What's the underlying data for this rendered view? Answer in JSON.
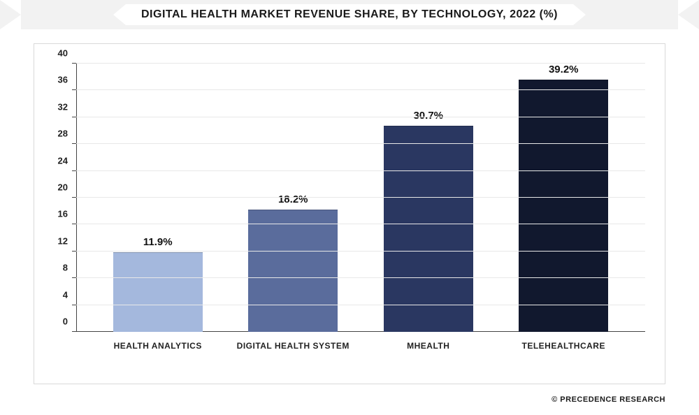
{
  "chart": {
    "type": "bar",
    "title": "DIGITAL HEALTH MARKET REVENUE SHARE, BY TECHNOLOGY, 2022 (%)",
    "title_fontsize": 16,
    "title_color": "#1a1a1a",
    "categories": [
      "HEALTH ANALYTICS",
      "DIGITAL HEALTH SYSTEM",
      "MHEALTH",
      "TELEHEALTHCARE"
    ],
    "values": [
      11.9,
      18.2,
      30.7,
      39.2
    ],
    "value_labels": [
      "11.9%",
      "18.2%",
      "30.7%",
      "39.2%"
    ],
    "bar_colors": [
      "#a4b8dd",
      "#5a6c9c",
      "#2a3761",
      "#11182e"
    ],
    "ylim": [
      0,
      40
    ],
    "ytick_step": 4,
    "yticks": [
      0,
      4,
      8,
      12,
      16,
      20,
      24,
      28,
      32,
      36,
      40
    ],
    "grid_color": "#e8e8e8",
    "axis_color": "#444444",
    "background_color": "#ffffff",
    "frame_border_color": "#d9d9d9",
    "label_fontsize": 12,
    "value_fontsize": 15,
    "tick_fontsize": 13,
    "bar_width": 0.66
  },
  "attribution": "© PRECEDENCE RESEARCH"
}
